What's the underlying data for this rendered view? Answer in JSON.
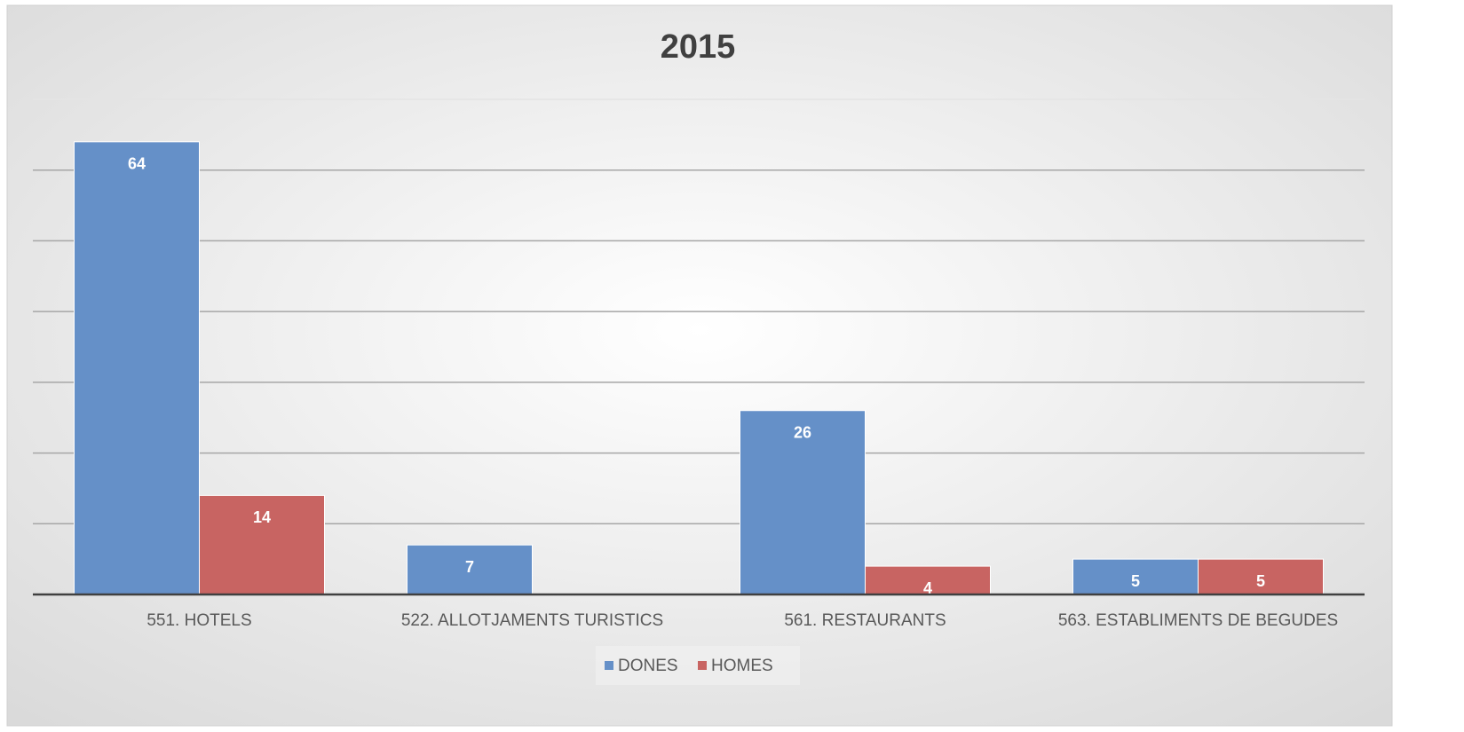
{
  "chart_data": {
    "type": "bar",
    "title": "2015",
    "categories": [
      "551. HOTELS",
      "522. ALLOTJAMENTS TURISTICS",
      "561. RESTAURANTS",
      "563. ESTABLIMENTS DE BEGUDES"
    ],
    "series": [
      {
        "name": "DONES",
        "color": "#6590c8",
        "values": [
          64,
          7,
          26,
          5
        ]
      },
      {
        "name": "HOMES",
        "color": "#c86462",
        "values": [
          14,
          null,
          4,
          5
        ]
      }
    ],
    "ylim": [
      0,
      70
    ],
    "yticks": [
      0,
      10,
      20,
      30,
      40,
      50,
      60,
      70
    ],
    "grid": true,
    "legend": "bottom"
  }
}
